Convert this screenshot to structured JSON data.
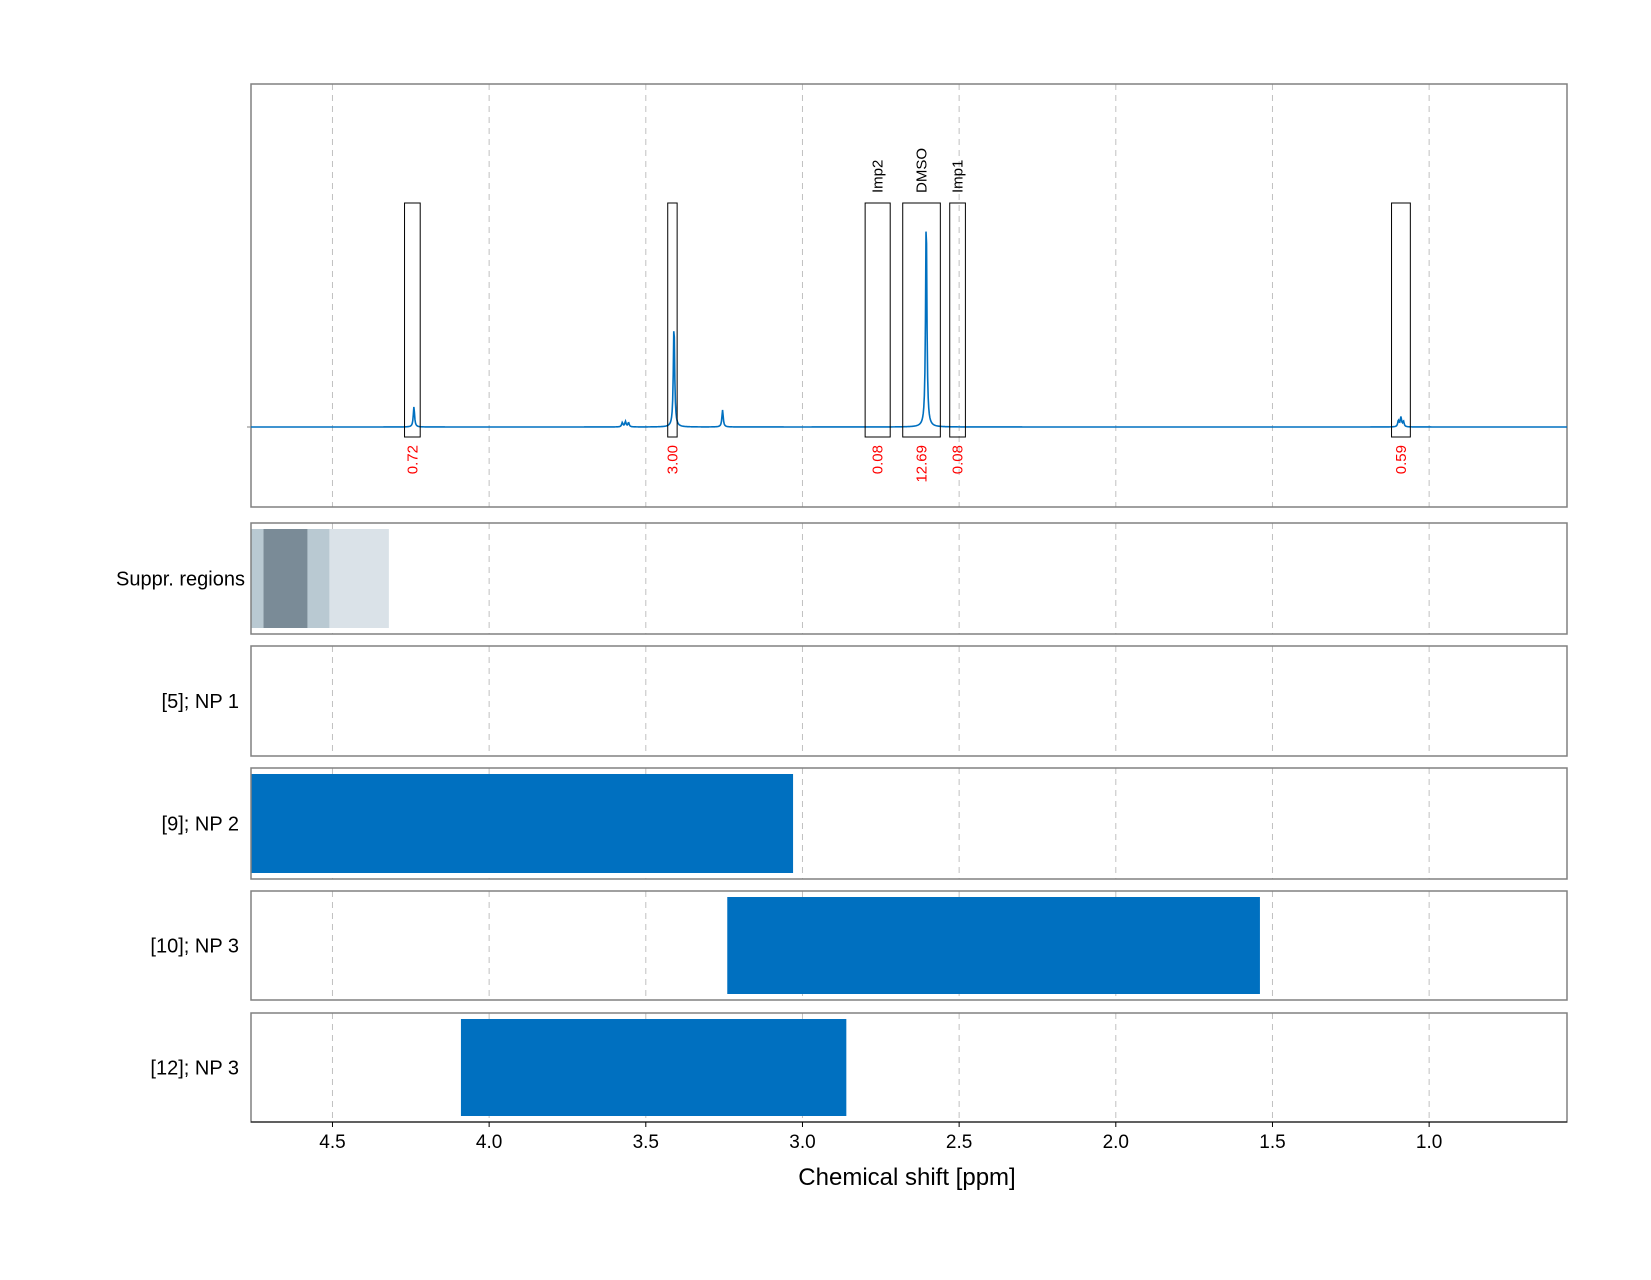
{
  "chart_data": {
    "type": "line",
    "xlabel": "Chemical shift [ppm]",
    "ylabel": "",
    "xlim": [
      4.76,
      0.56
    ],
    "x_reversed": true,
    "xticks": [
      4.5,
      4.0,
      3.5,
      3.0,
      2.5,
      2.0,
      1.5,
      1.0
    ],
    "xtick_labels": [
      "4.5",
      "4.0",
      "3.5",
      "3.0",
      "2.5",
      "2.0",
      "1.5",
      "1.0"
    ],
    "grid": "vertical dashed at x ticks",
    "colors": {
      "spectrum": "#0070c0",
      "integral_label": "#ff0000",
      "bar": "#0070c0",
      "suppr_light": "#dae2e8",
      "suppr_mid": "#b9c9d2",
      "suppr_dark": "#7a8b97",
      "frame": "#808080",
      "grid": "#c0c0c0"
    },
    "spectrum": {
      "baseline": 0,
      "peaks": [
        {
          "ppm": 4.24,
          "height": 0.095
        },
        {
          "ppm": 3.575,
          "height": 0.02
        },
        {
          "ppm": 3.565,
          "height": 0.025
        },
        {
          "ppm": 3.555,
          "height": 0.02
        },
        {
          "ppm": 3.41,
          "height": 0.49
        },
        {
          "ppm": 3.255,
          "height": 0.08
        },
        {
          "ppm": 2.605,
          "height": 1.0
        },
        {
          "ppm": 1.098,
          "height": 0.03
        },
        {
          "ppm": 1.09,
          "height": 0.045
        },
        {
          "ppm": 1.082,
          "height": 0.025
        }
      ]
    },
    "integration_regions": [
      {
        "from": 4.27,
        "to": 4.22,
        "value": "0.72",
        "label": ""
      },
      {
        "from": 3.43,
        "to": 3.4,
        "value": "3.00",
        "label": ""
      },
      {
        "from": 2.8,
        "to": 2.72,
        "value": "0.08",
        "label": "Imp2"
      },
      {
        "from": 2.68,
        "to": 2.56,
        "value": "12.69",
        "label": "DMSO"
      },
      {
        "from": 2.53,
        "to": 2.48,
        "value": "0.08",
        "label": "Imp1"
      },
      {
        "from": 1.12,
        "to": 1.06,
        "value": "0.59",
        "label": ""
      }
    ],
    "suppression_track": {
      "label": "Suppr. regions",
      "regions": [
        {
          "from": 4.76,
          "to": 4.32,
          "shade": "light"
        },
        {
          "from": 4.76,
          "to": 4.51,
          "shade": "mid"
        },
        {
          "from": 4.72,
          "to": 4.58,
          "shade": "dark"
        }
      ]
    },
    "tracks": [
      {
        "label": "[5]; NP 1",
        "bars": []
      },
      {
        "label": "[9]; NP 2",
        "bars": [
          {
            "from": 4.76,
            "to": 3.03
          }
        ]
      },
      {
        "label": "[10]; NP 3",
        "bars": [
          {
            "from": 3.24,
            "to": 1.54
          }
        ]
      },
      {
        "label": "[12]; NP 3",
        "bars": [
          {
            "from": 4.09,
            "to": 2.86
          }
        ]
      }
    ]
  }
}
